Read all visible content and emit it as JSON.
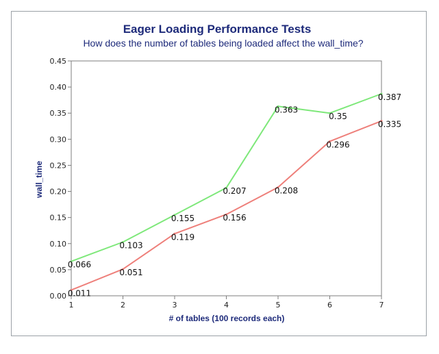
{
  "chart_data": {
    "type": "line",
    "title": "Eager Loading Performance Tests",
    "subtitle": "How does the number of tables being loaded affect the wall_time?",
    "xlabel": "# of tables (100 records each)",
    "ylabel": "wall_time",
    "x": [
      1,
      2,
      3,
      4,
      5,
      6,
      7
    ],
    "xticks": [
      "1",
      "2",
      "3",
      "4",
      "5",
      "6",
      "7"
    ],
    "xlim": [
      1,
      7
    ],
    "ylim": [
      0,
      0.45
    ],
    "yticks": [
      "0.00",
      "0.05",
      "0.10",
      "0.15",
      "0.20",
      "0.25",
      "0.30",
      "0.35",
      "0.40",
      "0.45"
    ],
    "grid": false,
    "legend": "none",
    "series": [
      {
        "color": "#7ee87a",
        "values": [
          0.066,
          0.103,
          0.155,
          0.207,
          0.363,
          0.35,
          0.387
        ],
        "labels": [
          "0.066",
          "0.103",
          "0.155",
          "0.207",
          "0.363",
          "0.35",
          "0.387"
        ]
      },
      {
        "color": "#ee7f7a",
        "values": [
          0.011,
          0.051,
          0.119,
          0.156,
          0.208,
          0.296,
          0.335
        ],
        "labels": [
          "0.011",
          "0.051",
          "0.119",
          "0.156",
          "0.208",
          "0.296",
          "0.335"
        ]
      }
    ]
  }
}
